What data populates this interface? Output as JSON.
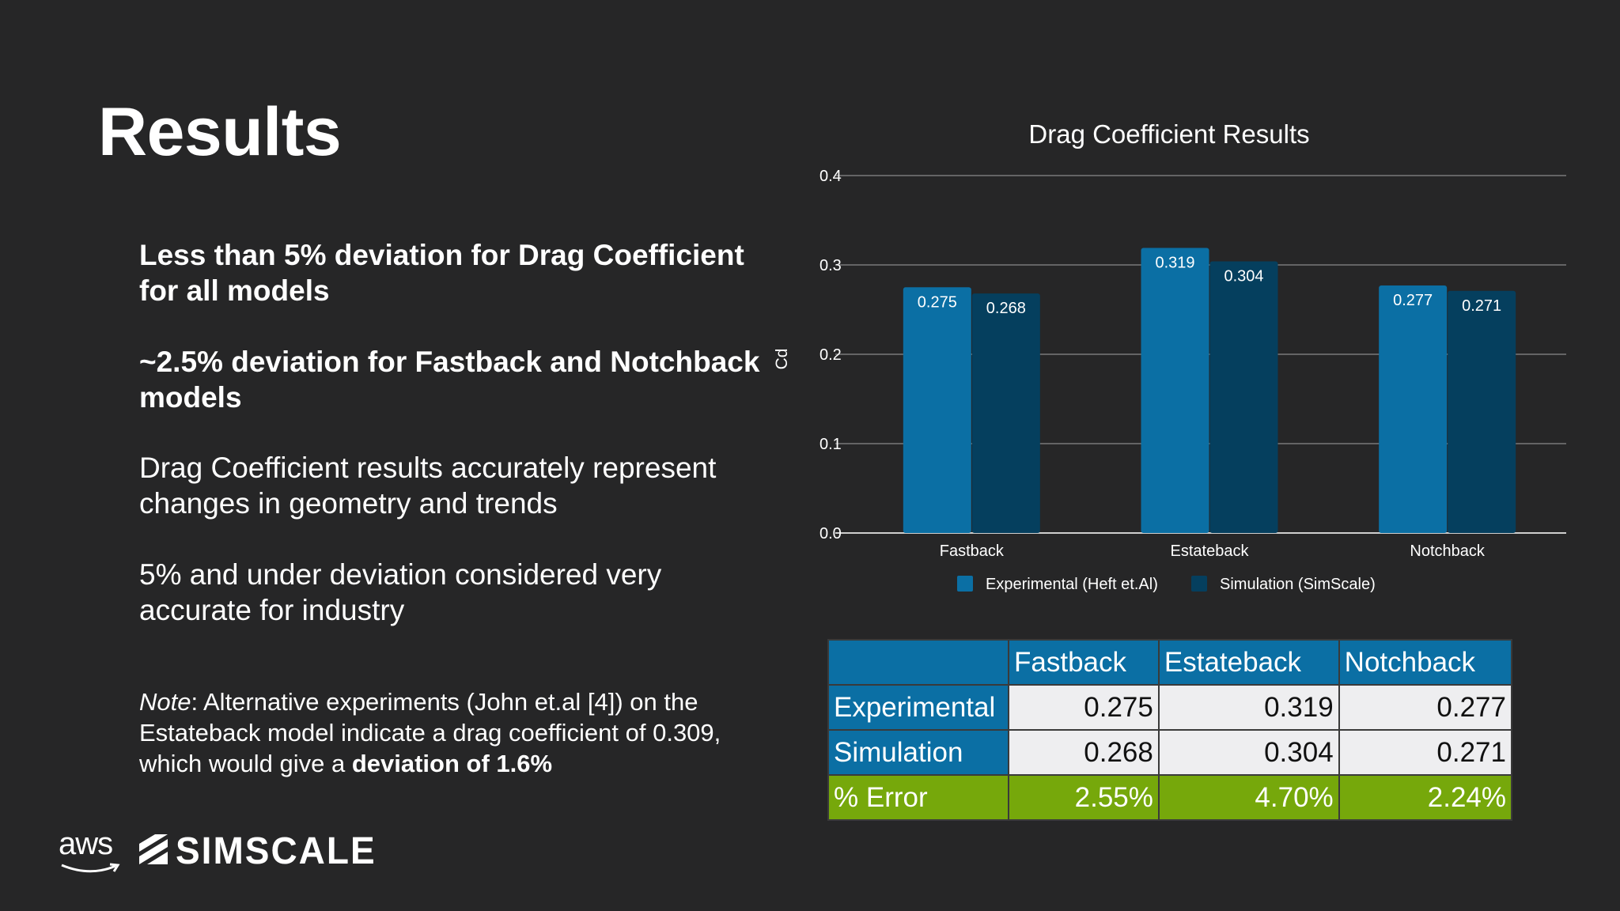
{
  "slide": {
    "title": "Results",
    "bullets": [
      "Less than 5% deviation for Drag Coefficient for all models",
      "~2.5% deviation for Fastback and Notchback models",
      "Drag Coefficient results accurately represent changes in geometry and trends",
      "5% and under deviation considered very accurate for industry"
    ],
    "note": {
      "label": "Note",
      "text": ": Alternative experiments (John et.al [4]) on the Estateback model indicate a drag coefficient of 0.309, which would give a ",
      "emphasis": "deviation of 1.6%"
    },
    "logos": {
      "aws": "aws",
      "simscale": "SIMSCALE"
    }
  },
  "chart_data": {
    "type": "bar",
    "title": "Drag Coefficient Results",
    "xlabel": "",
    "ylabel": "Cd",
    "ylim": [
      0,
      0.4
    ],
    "yticks": [
      "0.0",
      "0.1",
      "0.2",
      "0.3",
      "0.4"
    ],
    "categories": [
      "Fastback",
      "Estateback",
      "Notchback"
    ],
    "series": [
      {
        "name": "Experimental (Heft et.Al)",
        "values": [
          0.275,
          0.319,
          0.277
        ],
        "labels": [
          "0.275",
          "0.319",
          "0.277"
        ],
        "color": "#0b6fa4"
      },
      {
        "name": "Simulation (SimScale)",
        "values": [
          0.268,
          0.304,
          0.271
        ],
        "labels": [
          "0.268",
          "0.304",
          "0.271"
        ],
        "color": "#053f5e"
      }
    ],
    "grid": true,
    "legend": "bottom"
  },
  "table": {
    "header": [
      "",
      "Fastback",
      "Estateback",
      "Notchback"
    ],
    "rows": [
      {
        "label": "Experimental",
        "values": [
          "0.275",
          "0.319",
          "0.277"
        ]
      },
      {
        "label": "Simulation",
        "values": [
          "0.268",
          "0.304",
          "0.271"
        ]
      },
      {
        "label": "% Error",
        "values": [
          "2.55%",
          "4.70%",
          "2.24%"
        ]
      }
    ],
    "colors": {
      "header": "#0b6fa4",
      "body": "#eeeef0",
      "error": "#76a80b"
    }
  }
}
